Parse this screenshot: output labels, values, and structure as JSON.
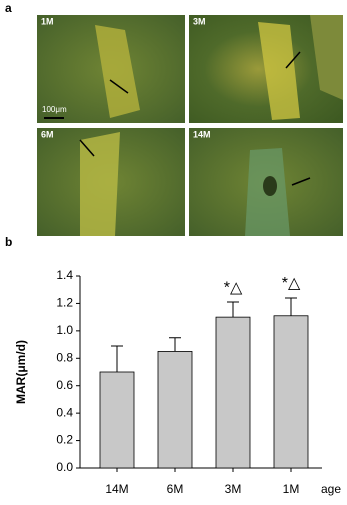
{
  "figure_labels": [
    "a",
    "b"
  ],
  "micrographs": [
    {
      "label": "1M"
    },
    {
      "label": "3M"
    },
    {
      "label": "6M"
    },
    {
      "label": "14M"
    }
  ],
  "scale_bar": "100μm",
  "chart_data": {
    "type": "bar",
    "y_label": "MAR(μm/d)",
    "x_label": "age",
    "categories": [
      "14M",
      "6M",
      "3M",
      "1M"
    ],
    "values": [
      0.7,
      0.85,
      1.1,
      1.11
    ],
    "errors": [
      0.19,
      0.1,
      0.11,
      0.13
    ],
    "color": "#c8c8c8",
    "ylim": [
      0,
      1.4
    ],
    "yticks": [
      {
        "value": 0,
        "label": "0.0"
      },
      0.2,
      0.4,
      0.6,
      0.8,
      {
        "value": 1,
        "label": "1.0"
      },
      1.2,
      1.4
    ],
    "annotations": [
      {
        "index": 2,
        "text": "*△"
      },
      {
        "index": 3,
        "text": "*△"
      }
    ],
    "grid": false
  }
}
